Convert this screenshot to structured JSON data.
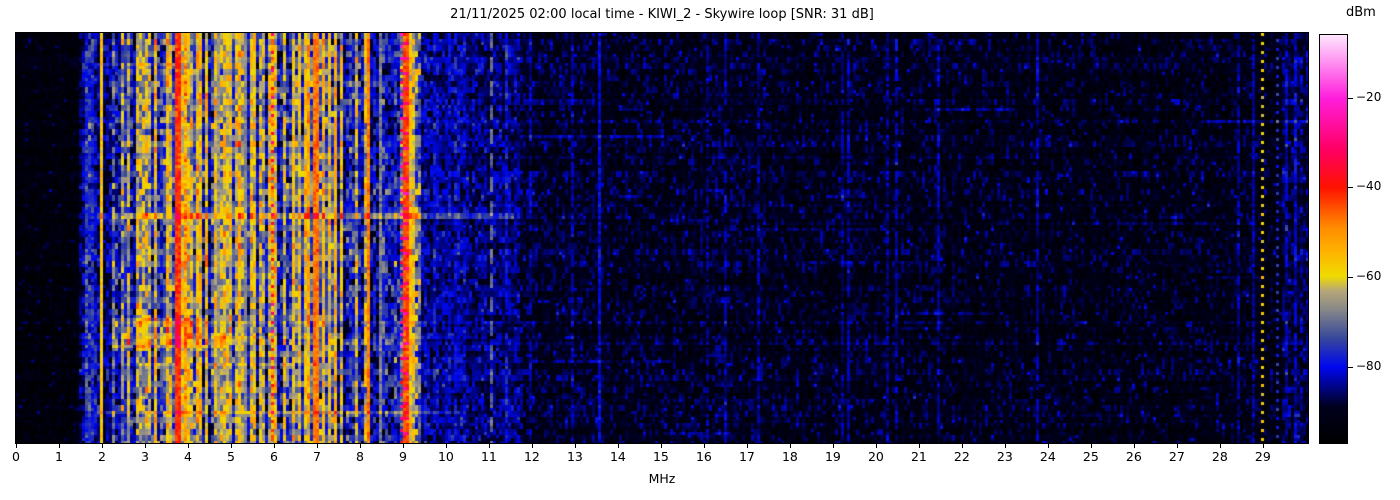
{
  "title": "21/11/2025 02:00 local time - KIWI_2 - Skywire loop [SNR: 31 dB]",
  "axes": {
    "x": {
      "label": "MHz",
      "range": [
        0,
        30.05
      ],
      "ticks": [
        0,
        1,
        2,
        3,
        4,
        5,
        6,
        7,
        8,
        9,
        10,
        11,
        12,
        13,
        14,
        15,
        16,
        17,
        18,
        19,
        20,
        21,
        22,
        23,
        24,
        25,
        26,
        27,
        28,
        29
      ]
    },
    "colorbar": {
      "label": "dBm",
      "vmin": -97,
      "vmax": -6,
      "ticks": [
        {
          "v": -20,
          "label": "−20"
        },
        {
          "v": -40,
          "label": "−40"
        },
        {
          "v": -60,
          "label": "−60"
        },
        {
          "v": -80,
          "label": "−80"
        }
      ]
    }
  },
  "chart_data": {
    "type": "heatmap",
    "title": "21/11/2025 02:00 local time - KIWI_2 - Skywire loop [SNR: 31 dB]",
    "xlabel": "MHz",
    "x_range": [
      0,
      30.05
    ],
    "value_unit": "dBm",
    "vmin": -97,
    "vmax": -6,
    "seed": 1337,
    "row_jitter_db": 1.6,
    "colormap": [
      [
        0.0,
        "#000000"
      ],
      [
        0.09,
        "#00001e"
      ],
      [
        0.187,
        "#0008f0"
      ],
      [
        0.26,
        "#3a4a9a"
      ],
      [
        0.33,
        "#8a8a8a"
      ],
      [
        0.375,
        "#b8a878"
      ],
      [
        0.41,
        "#f0dc00"
      ],
      [
        0.47,
        "#ffb400"
      ],
      [
        0.53,
        "#ff8c00"
      ],
      [
        0.627,
        "#ff1400"
      ],
      [
        0.72,
        "#ff0064"
      ],
      [
        0.846,
        "#ff1edc"
      ],
      [
        0.93,
        "#ff8cf0"
      ],
      [
        1.0,
        "#ffe6ff"
      ]
    ],
    "bands": [
      {
        "f0": 0.0,
        "f1": 1.45,
        "mean": -94,
        "sd": 1.5,
        "ap": 0.05,
        "am": -88,
        "asd": 2.5,
        "cj": 0.8,
        "sp": 0.12,
        "sb": 5
      },
      {
        "f0": 1.45,
        "f1": 2.02,
        "mean": -85,
        "sd": 4.0,
        "ap": 0.3,
        "am": -77,
        "asd": 5.0,
        "cj": 3.0,
        "sp": 0.03,
        "sb": 6
      },
      {
        "f0": 2.02,
        "f1": 2.28,
        "mean": -84,
        "sd": 4.5,
        "ap": 0.22,
        "am": -72,
        "asd": 6.0,
        "cj": 3.0,
        "sp": 0.03,
        "sb": 6
      },
      {
        "f0": 2.28,
        "f1": 3.25,
        "mean": -79,
        "sd": 6.0,
        "ap": 0.45,
        "am": -64,
        "asd": 7.0,
        "cj": 4.0,
        "sp": 0.02,
        "sb": 6
      },
      {
        "f0": 3.25,
        "f1": 4.35,
        "mean": -73,
        "sd": 7.0,
        "ap": 0.55,
        "am": -59,
        "asd": 6.0,
        "cj": 4.0,
        "sp": 0.0,
        "sb": 0
      },
      {
        "f0": 4.35,
        "f1": 5.15,
        "mean": -78,
        "sd": 7.0,
        "ap": 0.45,
        "am": -62,
        "asd": 6.0,
        "cj": 4.0,
        "sp": 0.0,
        "sb": 0
      },
      {
        "f0": 5.15,
        "f1": 6.45,
        "mean": -77,
        "sd": 7.0,
        "ap": 0.48,
        "am": -61,
        "asd": 6.0,
        "cj": 4.0,
        "sp": 0.0,
        "sb": 0
      },
      {
        "f0": 6.45,
        "f1": 7.45,
        "mean": -74,
        "sd": 7.0,
        "ap": 0.55,
        "am": -58,
        "asd": 5.0,
        "cj": 4.0,
        "sp": 0.0,
        "sb": 0
      },
      {
        "f0": 7.45,
        "f1": 9.0,
        "mean": -80,
        "sd": 6.0,
        "ap": 0.3,
        "am": -64,
        "asd": 6.0,
        "cj": 4.0,
        "sp": 0.02,
        "sb": 5
      },
      {
        "f0": 9.0,
        "f1": 9.45,
        "mean": -71,
        "sd": 7.0,
        "ap": 0.5,
        "am": -60,
        "asd": 5.0,
        "cj": 4.0,
        "sp": 0.0,
        "sb": 0
      },
      {
        "f0": 9.45,
        "f1": 10.45,
        "mean": -83.5,
        "sd": 3.5,
        "ap": 0.12,
        "am": -78,
        "asd": 4.0,
        "cj": 2.0,
        "sp": 0.1,
        "sb": 5
      },
      {
        "f0": 10.45,
        "f1": 11.7,
        "mean": -86,
        "sd": 3.2,
        "ap": 0.08,
        "am": -80,
        "asd": 3.5,
        "cj": 1.5,
        "sp": 0.08,
        "sb": 5
      },
      {
        "f0": 11.7,
        "f1": 29.45,
        "mean": -89.5,
        "sd": 3.0,
        "ap": 0.04,
        "am": -84,
        "asd": 3.0,
        "cj": 1.0,
        "sp": 0.06,
        "sb": 5,
        "slope": -0.11
      },
      {
        "f0": 29.45,
        "f1": 30.05,
        "mean": -88,
        "sd": 3.5,
        "ap": 0.1,
        "am": -82,
        "asd": 3.0,
        "cj": 1.0,
        "sp": 0.08,
        "sb": 5
      }
    ],
    "lines": [
      {
        "f": 1.62,
        "w": 3,
        "mean": -76,
        "sd": 3.0,
        "style": "dashed",
        "period": 7,
        "duty": 4,
        "off": 0
      },
      {
        "f": 1.79,
        "w": 2,
        "mean": -78,
        "sd": 3.0,
        "style": "dashed",
        "period": 9,
        "duty": 5,
        "off": 3
      },
      {
        "f": 1.99,
        "w": 4,
        "mean": -57,
        "sd": 2.0,
        "style": "solid"
      },
      {
        "f": 2.45,
        "w": 2,
        "mean": -69,
        "sd": 2.5,
        "style": "solid"
      },
      {
        "f": 3.76,
        "w": 4,
        "mean": -42,
        "sd": 2.5,
        "style": "solid"
      },
      {
        "f": 3.95,
        "w": 3,
        "mean": -52,
        "sd": 4.0,
        "style": "solid"
      },
      {
        "f": 4.72,
        "w": 3,
        "mean": -66,
        "sd": 1.5,
        "style": "solid"
      },
      {
        "f": 5.37,
        "w": 3,
        "mean": -67,
        "sd": 1.5,
        "style": "solid"
      },
      {
        "f": 5.95,
        "w": 4,
        "mean": -55,
        "sd": 6.0,
        "style": "dotted",
        "period": 3,
        "duty": 1,
        "dot_mean": -37,
        "off": 0
      },
      {
        "f": 6.97,
        "w": 5,
        "mean": -47,
        "sd": 2.0,
        "style": "solid"
      },
      {
        "f": 8.2,
        "w": 4,
        "mean": -48,
        "sd": 2.0,
        "style": "solid"
      },
      {
        "f": 8.5,
        "w": 3,
        "mean": -68,
        "sd": 2.0,
        "style": "solid"
      },
      {
        "f": 8.95,
        "w": 3,
        "mean": -70,
        "sd": 5.0,
        "style": "dotted",
        "period": 4,
        "duty": 1,
        "dot_mean": -27,
        "off": 0
      },
      {
        "f": 9.08,
        "w": 4,
        "mean": -44,
        "sd": 2.0,
        "style": "dotted",
        "period": 5,
        "duty": 1,
        "dot_mean": -28,
        "off": 2
      },
      {
        "f": 11.05,
        "w": 3,
        "mean": -70,
        "sd": 1.2,
        "style": "dashed",
        "period": 8,
        "duty": 5,
        "off": 0
      },
      {
        "f": 13.55,
        "w": 3,
        "mean": -81,
        "sd": 2.0,
        "style": "solid"
      },
      {
        "f": 16.05,
        "w": 3,
        "mean": -86,
        "sd": 2.5,
        "style": "solid"
      },
      {
        "f": 20.3,
        "w": 3,
        "mean": -85,
        "sd": 2.5,
        "style": "solid"
      },
      {
        "f": 28.78,
        "w": 2,
        "mean": -84,
        "sd": 2.0,
        "style": "solid"
      },
      {
        "f": 29.02,
        "w": 3,
        "mean": -93,
        "sd": 1.5,
        "style": "dotted",
        "period": 3,
        "duty": 1,
        "dot_mean": -59,
        "off": 0
      },
      {
        "f": 29.32,
        "w": 3,
        "mean": -90,
        "sd": 1.5,
        "style": "dotted",
        "period": 3,
        "duty": 1,
        "dot_mean": -76,
        "off": 1
      }
    ],
    "streaks": [
      {
        "y0": 0.068,
        "y1": 0.079,
        "f0": 1.9,
        "f1": 3.7,
        "boost": 6
      },
      {
        "y0": 0.434,
        "y1": 0.447,
        "f0": 1.9,
        "f1": 11.6,
        "boost": 9
      },
      {
        "y0": 0.447,
        "y1": 0.455,
        "f0": 1.9,
        "f1": 6.2,
        "boost": 4
      },
      {
        "y0": 0.69,
        "y1": 0.727,
        "f0": 2.2,
        "f1": 4.6,
        "boost": 8
      },
      {
        "y0": 0.727,
        "y1": 0.764,
        "f0": 2.2,
        "f1": 4.85,
        "boost": 9
      },
      {
        "y0": 0.733,
        "y1": 0.75,
        "f0": 4.6,
        "f1": 6.3,
        "boost": 4
      },
      {
        "y0": 0.798,
        "y1": 0.81,
        "f0": 1.9,
        "f1": 7.0,
        "boost": 4
      },
      {
        "y0": 0.915,
        "y1": 0.928,
        "f0": 1.9,
        "f1": 10.35,
        "boost": 9
      }
    ],
    "right_segments": {
      "count": 16,
      "f_min": 11.7,
      "f_max": 29.4,
      "len_min": 0.6,
      "len_max": 3.5,
      "boost_min": 3,
      "boost_max": 6
    }
  }
}
